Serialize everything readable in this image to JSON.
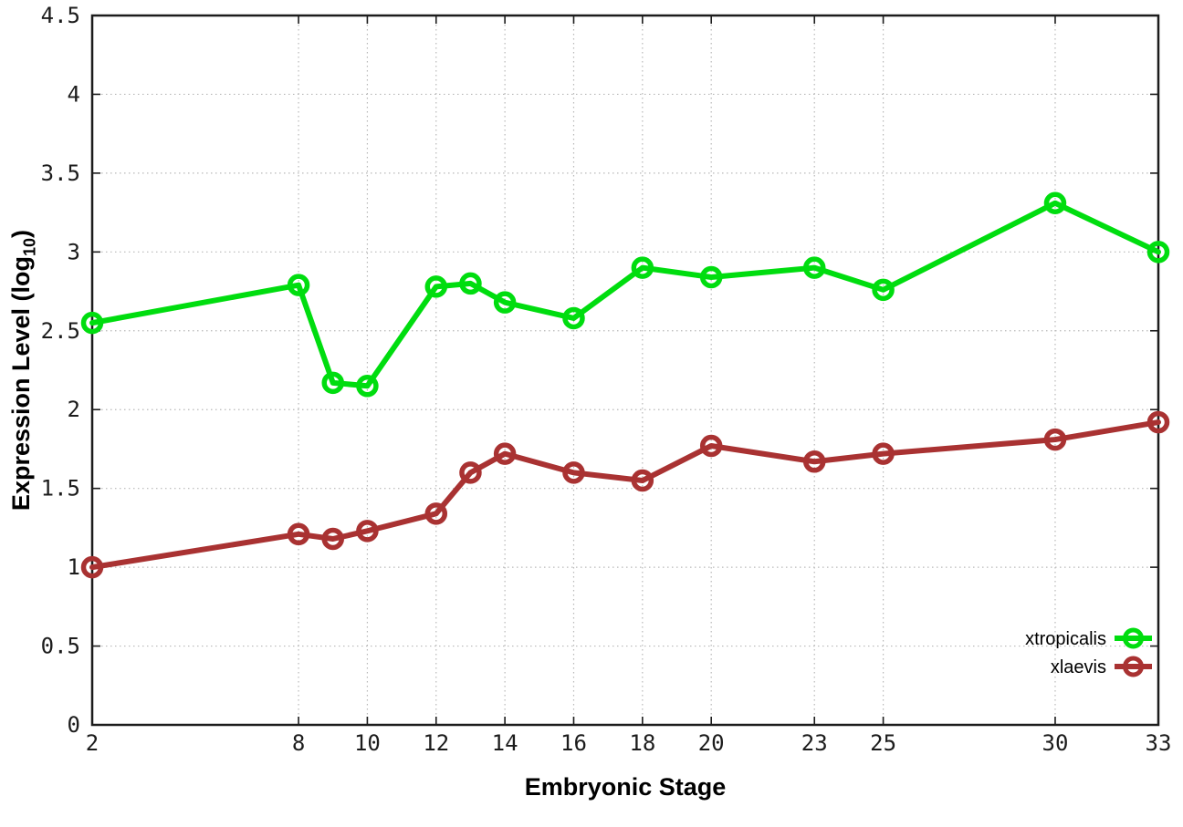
{
  "figure": {
    "xlabel": "Embryonic Stage",
    "ylabel_main": "Expression Level (log",
    "ylabel_sub": "10",
    "ylabel_close": ")",
    "background": "#ffffff",
    "axis_color": "#1c1c1c",
    "grid_color": "#b8b8b8"
  },
  "chart_data": {
    "type": "line",
    "title": "",
    "xlabel": "Embryonic Stage",
    "ylabel": "Expression Level (log10)",
    "xlim": [
      2,
      33
    ],
    "ylim": [
      0,
      4.5
    ],
    "grid": true,
    "legend_position": "bottom-right",
    "x": [
      2,
      8,
      9,
      10,
      12,
      13,
      14,
      16,
      18,
      20,
      23,
      25,
      30,
      33
    ],
    "xticks": [
      2,
      8,
      10,
      12,
      14,
      16,
      18,
      20,
      23,
      25,
      30,
      33
    ],
    "xtick_labels": [
      "2",
      "8",
      "10",
      "12",
      "14",
      "16",
      "18",
      "20",
      "23",
      "25",
      "30",
      "33"
    ],
    "yticks": [
      0,
      0.5,
      1,
      1.5,
      2,
      2.5,
      3,
      3.5,
      4,
      4.5
    ],
    "ytick_labels": [
      "0",
      "0.5",
      "1",
      "1.5",
      "2",
      "2.5",
      "3",
      "3.5",
      "4",
      "4.5"
    ],
    "series": [
      {
        "name": "xtropicalis",
        "color": "#00dd0f",
        "values": [
          2.55,
          2.79,
          2.17,
          2.15,
          2.78,
          2.8,
          2.68,
          2.58,
          2.9,
          2.84,
          2.9,
          2.76,
          3.31,
          3.0
        ]
      },
      {
        "name": "xlaevis",
        "color": "#a93232",
        "values": [
          1.0,
          1.21,
          1.18,
          1.23,
          1.34,
          1.6,
          1.72,
          1.6,
          1.55,
          1.77,
          1.67,
          1.72,
          1.81,
          1.92
        ]
      }
    ]
  }
}
